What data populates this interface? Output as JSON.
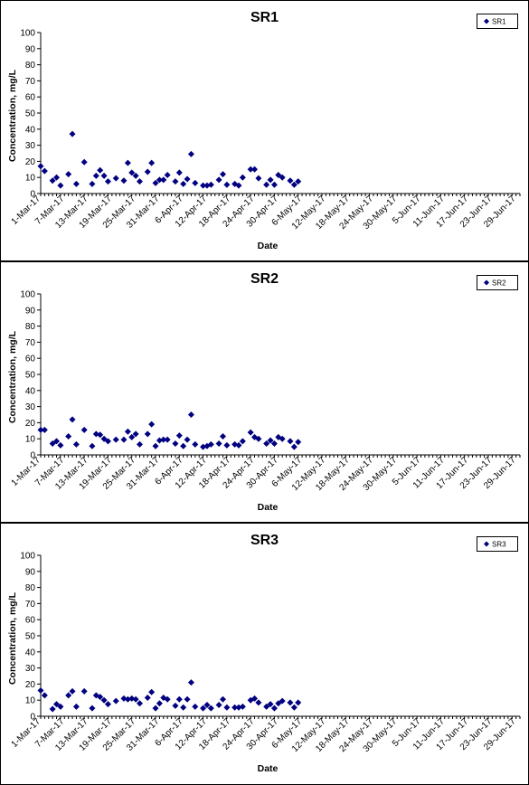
{
  "chart_data": [
    {
      "type": "scatter",
      "title": "SR1",
      "xlabel": "Date",
      "ylabel": "Concentration, mg/L",
      "ylim": [
        0,
        100
      ],
      "y_ticks": [
        0,
        10,
        20,
        30,
        40,
        50,
        60,
        70,
        80,
        90,
        100
      ],
      "x_range": [
        "2017-03-01",
        "2017-06-30"
      ],
      "x_ticks": [
        "1-Mar-17",
        "7-Mar-17",
        "13-Mar-17",
        "19-Mar-17",
        "25-Mar-17",
        "31-Mar-17",
        "6-Apr-17",
        "12-Apr-17",
        "18-Apr-17",
        "24-Apr-17",
        "30-Apr-17",
        "6-May-17",
        "12-May-17",
        "18-May-17",
        "24-May-17",
        "30-May-17",
        "5-Jun-17",
        "11-Jun-17",
        "17-Jun-17",
        "23-Jun-17",
        "29-Jun-17"
      ],
      "legend": "top-right",
      "grid": false,
      "series": [
        {
          "name": "SR1",
          "color": "#000080",
          "marker": "diamond",
          "points": [
            [
              "2017-03-01",
              17
            ],
            [
              "2017-03-02",
              14
            ],
            [
              "2017-03-04",
              8
            ],
            [
              "2017-03-05",
              10
            ],
            [
              "2017-03-06",
              5
            ],
            [
              "2017-03-08",
              12
            ],
            [
              "2017-03-09",
              37
            ],
            [
              "2017-03-10",
              6
            ],
            [
              "2017-03-12",
              19.5
            ],
            [
              "2017-03-14",
              6
            ],
            [
              "2017-03-15",
              11
            ],
            [
              "2017-03-16",
              14.5
            ],
            [
              "2017-03-17",
              11
            ],
            [
              "2017-03-18",
              7.5
            ],
            [
              "2017-03-20",
              9.5
            ],
            [
              "2017-03-22",
              8
            ],
            [
              "2017-03-23",
              19
            ],
            [
              "2017-03-24",
              13
            ],
            [
              "2017-03-25",
              11
            ],
            [
              "2017-03-26",
              7.5
            ],
            [
              "2017-03-28",
              13.5
            ],
            [
              "2017-03-29",
              19
            ],
            [
              "2017-03-30",
              6.5
            ],
            [
              "2017-03-31",
              8.5
            ],
            [
              "2017-04-01",
              8.5
            ],
            [
              "2017-04-02",
              11.5
            ],
            [
              "2017-04-04",
              7.5
            ],
            [
              "2017-04-05",
              13
            ],
            [
              "2017-04-06",
              6
            ],
            [
              "2017-04-07",
              9
            ],
            [
              "2017-04-08",
              24.5
            ],
            [
              "2017-04-09",
              6.5
            ],
            [
              "2017-04-11",
              5
            ],
            [
              "2017-04-12",
              5
            ],
            [
              "2017-04-13",
              5.5
            ],
            [
              "2017-04-15",
              8.5
            ],
            [
              "2017-04-16",
              12
            ],
            [
              "2017-04-17",
              5.5
            ],
            [
              "2017-04-19",
              6
            ],
            [
              "2017-04-20",
              5
            ],
            [
              "2017-04-21",
              10
            ],
            [
              "2017-04-23",
              15
            ],
            [
              "2017-04-24",
              15
            ],
            [
              "2017-04-25",
              9.5
            ],
            [
              "2017-04-27",
              5.5
            ],
            [
              "2017-04-28",
              8.5
            ],
            [
              "2017-04-29",
              5.5
            ],
            [
              "2017-04-30",
              11.5
            ],
            [
              "2017-05-01",
              10
            ],
            [
              "2017-05-03",
              8
            ],
            [
              "2017-05-04",
              5.5
            ],
            [
              "2017-05-05",
              7.5
            ]
          ]
        }
      ]
    },
    {
      "type": "scatter",
      "title": "SR2",
      "xlabel": "Date",
      "ylabel": "Concentration, mg/L",
      "ylim": [
        0,
        100
      ],
      "y_ticks": [
        0,
        10,
        20,
        30,
        40,
        50,
        60,
        70,
        80,
        90,
        100
      ],
      "x_range": [
        "2017-03-01",
        "2017-06-30"
      ],
      "x_ticks": [
        "1-Mar-17",
        "7-Mar-17",
        "13-Mar-17",
        "19-Mar-17",
        "25-Mar-17",
        "31-Mar-17",
        "6-Apr-17",
        "12-Apr-17",
        "18-Apr-17",
        "24-Apr-17",
        "30-Apr-17",
        "6-May-17",
        "12-May-17",
        "18-May-17",
        "24-May-17",
        "30-May-17",
        "5-Jun-17",
        "11-Jun-17",
        "17-Jun-17",
        "23-Jun-17",
        "29-Jun-17"
      ],
      "legend": "top-right",
      "grid": false,
      "series": [
        {
          "name": "SR2",
          "color": "#000080",
          "marker": "diamond",
          "points": [
            [
              "2017-03-01",
              15.5
            ],
            [
              "2017-03-02",
              15.5
            ],
            [
              "2017-03-04",
              7
            ],
            [
              "2017-03-05",
              8.5
            ],
            [
              "2017-03-06",
              6
            ],
            [
              "2017-03-08",
              11.5
            ],
            [
              "2017-03-09",
              22
            ],
            [
              "2017-03-10",
              6.5
            ],
            [
              "2017-03-12",
              15.5
            ],
            [
              "2017-03-14",
              5.5
            ],
            [
              "2017-03-15",
              13
            ],
            [
              "2017-03-16",
              12.5
            ],
            [
              "2017-03-17",
              10
            ],
            [
              "2017-03-18",
              8.5
            ],
            [
              "2017-03-20",
              9.5
            ],
            [
              "2017-03-22",
              9.5
            ],
            [
              "2017-03-23",
              14.5
            ],
            [
              "2017-03-24",
              11
            ],
            [
              "2017-03-25",
              13
            ],
            [
              "2017-03-26",
              6.5
            ],
            [
              "2017-03-28",
              13
            ],
            [
              "2017-03-29",
              19
            ],
            [
              "2017-03-30",
              5.5
            ],
            [
              "2017-03-31",
              9
            ],
            [
              "2017-04-01",
              9.5
            ],
            [
              "2017-04-02",
              9.5
            ],
            [
              "2017-04-04",
              7
            ],
            [
              "2017-04-05",
              12
            ],
            [
              "2017-04-06",
              5.5
            ],
            [
              "2017-04-07",
              9.5
            ],
            [
              "2017-04-08",
              25
            ],
            [
              "2017-04-09",
              6.5
            ],
            [
              "2017-04-11",
              5
            ],
            [
              "2017-04-12",
              5.5
            ],
            [
              "2017-04-13",
              6.5
            ],
            [
              "2017-04-15",
              7
            ],
            [
              "2017-04-16",
              11.5
            ],
            [
              "2017-04-17",
              6
            ],
            [
              "2017-04-19",
              6.5
            ],
            [
              "2017-04-20",
              6
            ],
            [
              "2017-04-21",
              8.5
            ],
            [
              "2017-04-23",
              14
            ],
            [
              "2017-04-24",
              11
            ],
            [
              "2017-04-25",
              10
            ],
            [
              "2017-04-27",
              7
            ],
            [
              "2017-04-28",
              9
            ],
            [
              "2017-04-29",
              7
            ],
            [
              "2017-04-30",
              11
            ],
            [
              "2017-05-01",
              10
            ],
            [
              "2017-05-03",
              8.5
            ],
            [
              "2017-05-04",
              5
            ],
            [
              "2017-05-05",
              8
            ]
          ]
        }
      ]
    },
    {
      "type": "scatter",
      "title": "SR3",
      "xlabel": "Date",
      "ylabel": "Concentration, mg/L",
      "ylim": [
        0,
        100
      ],
      "y_ticks": [
        0,
        10,
        20,
        30,
        40,
        50,
        60,
        70,
        80,
        90,
        100
      ],
      "x_range": [
        "2017-03-01",
        "2017-06-30"
      ],
      "x_ticks": [
        "1-Mar-17",
        "7-Mar-17",
        "13-Mar-17",
        "19-Mar-17",
        "25-Mar-17",
        "31-Mar-17",
        "6-Apr-17",
        "12-Apr-17",
        "18-Apr-17",
        "24-Apr-17",
        "30-Apr-17",
        "6-May-17",
        "12-May-17",
        "18-May-17",
        "24-May-17",
        "30-May-17",
        "5-Jun-17",
        "11-Jun-17",
        "17-Jun-17",
        "23-Jun-17",
        "29-Jun-17"
      ],
      "legend": "top-right",
      "grid": false,
      "series": [
        {
          "name": "SR3",
          "color": "#000080",
          "marker": "diamond",
          "points": [
            [
              "2017-03-01",
              16
            ],
            [
              "2017-03-02",
              13
            ],
            [
              "2017-03-04",
              4.5
            ],
            [
              "2017-03-05",
              7.5
            ],
            [
              "2017-03-06",
              6
            ],
            [
              "2017-03-08",
              13
            ],
            [
              "2017-03-09",
              15.5
            ],
            [
              "2017-03-10",
              6
            ],
            [
              "2017-03-12",
              15.5
            ],
            [
              "2017-03-14",
              5
            ],
            [
              "2017-03-15",
              13
            ],
            [
              "2017-03-16",
              12
            ],
            [
              "2017-03-17",
              10
            ],
            [
              "2017-03-18",
              7.5
            ],
            [
              "2017-03-20",
              9.5
            ],
            [
              "2017-03-22",
              11
            ],
            [
              "2017-03-23",
              10.5
            ],
            [
              "2017-03-24",
              11
            ],
            [
              "2017-03-25",
              10.5
            ],
            [
              "2017-03-26",
              8
            ],
            [
              "2017-03-28",
              11.5
            ],
            [
              "2017-03-29",
              15
            ],
            [
              "2017-03-30",
              5
            ],
            [
              "2017-03-31",
              8
            ],
            [
              "2017-04-01",
              11.5
            ],
            [
              "2017-04-02",
              10.5
            ],
            [
              "2017-04-04",
              6.5
            ],
            [
              "2017-04-05",
              10.5
            ],
            [
              "2017-04-06",
              5.5
            ],
            [
              "2017-04-07",
              10.5
            ],
            [
              "2017-04-08",
              21
            ],
            [
              "2017-04-09",
              6
            ],
            [
              "2017-04-11",
              5
            ],
            [
              "2017-04-12",
              7
            ],
            [
              "2017-04-13",
              5
            ],
            [
              "2017-04-15",
              7
            ],
            [
              "2017-04-16",
              10.5
            ],
            [
              "2017-04-17",
              5.5
            ],
            [
              "2017-04-19",
              5.5
            ],
            [
              "2017-04-20",
              5.5
            ],
            [
              "2017-04-21",
              6
            ],
            [
              "2017-04-23",
              10
            ],
            [
              "2017-04-24",
              11
            ],
            [
              "2017-04-25",
              8.5
            ],
            [
              "2017-04-27",
              6
            ],
            [
              "2017-04-28",
              7.5
            ],
            [
              "2017-04-29",
              5
            ],
            [
              "2017-04-30",
              8
            ],
            [
              "2017-05-01",
              9.5
            ],
            [
              "2017-05-03",
              8.5
            ],
            [
              "2017-05-04",
              5.5
            ],
            [
              "2017-05-05",
              8.5
            ]
          ]
        }
      ]
    }
  ]
}
